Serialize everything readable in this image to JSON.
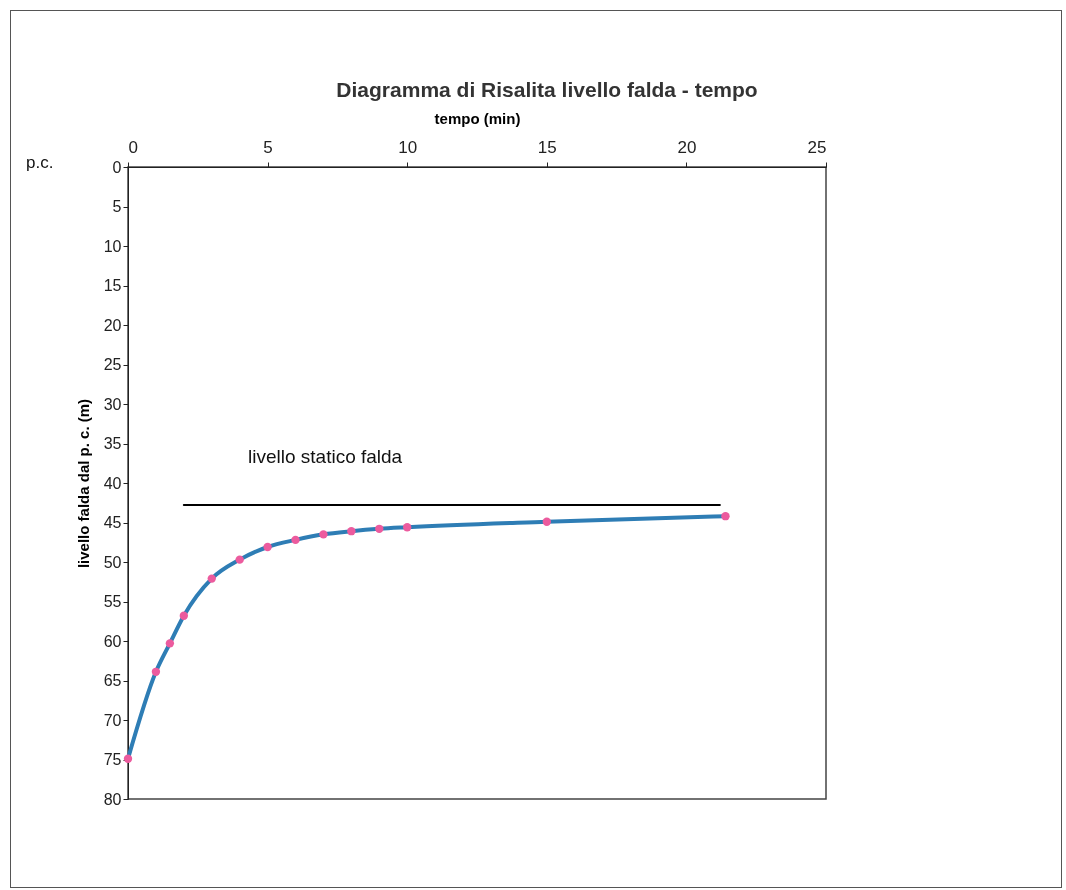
{
  "chart_data": {
    "type": "line",
    "title": "Diagramma di Risalita livello falda - tempo",
    "xlabel": "tempo (min)",
    "ylabel": "livello falda dal p. c. (m)",
    "xlim": [
      0,
      25
    ],
    "xticks": [
      0,
      5,
      10,
      15,
      20,
      25
    ],
    "ylim": [
      80,
      0
    ],
    "yticks": [
      0,
      5,
      10,
      15,
      20,
      25,
      30,
      35,
      40,
      45,
      50,
      55,
      60,
      65,
      70,
      75,
      80
    ],
    "marker": "circle",
    "series": [
      {
        "color": "#2e7db5",
        "marker": "none",
        "x": [
          0,
          1,
          1.5,
          2,
          3,
          4,
          5,
          6,
          7,
          8,
          9,
          10,
          15,
          21.4
        ],
        "values": [
          74.9,
          63.9,
          60.3,
          56.8,
          52.1,
          49.7,
          48.1,
          47.2,
          46.5,
          46.1,
          45.8,
          45.6,
          44.9,
          44.2
        ]
      },
      {
        "type": "scatter",
        "color": "#ec5b9e",
        "x": [
          0,
          1,
          1.5,
          2,
          3,
          4,
          5,
          6,
          7,
          8,
          9,
          10,
          15,
          21.4
        ],
        "values": [
          74.9,
          63.9,
          60.3,
          56.8,
          52.1,
          49.7,
          48.1,
          47.2,
          46.5,
          46.1,
          45.8,
          45.6,
          44.9,
          44.2
        ]
      },
      {
        "color": "#000000",
        "marker": "none",
        "x": [
          2,
          21.2
        ],
        "values": [
          42.8,
          42.8
        ]
      }
    ],
    "annotations": [
      "livello statico falda",
      "p.c."
    ]
  }
}
